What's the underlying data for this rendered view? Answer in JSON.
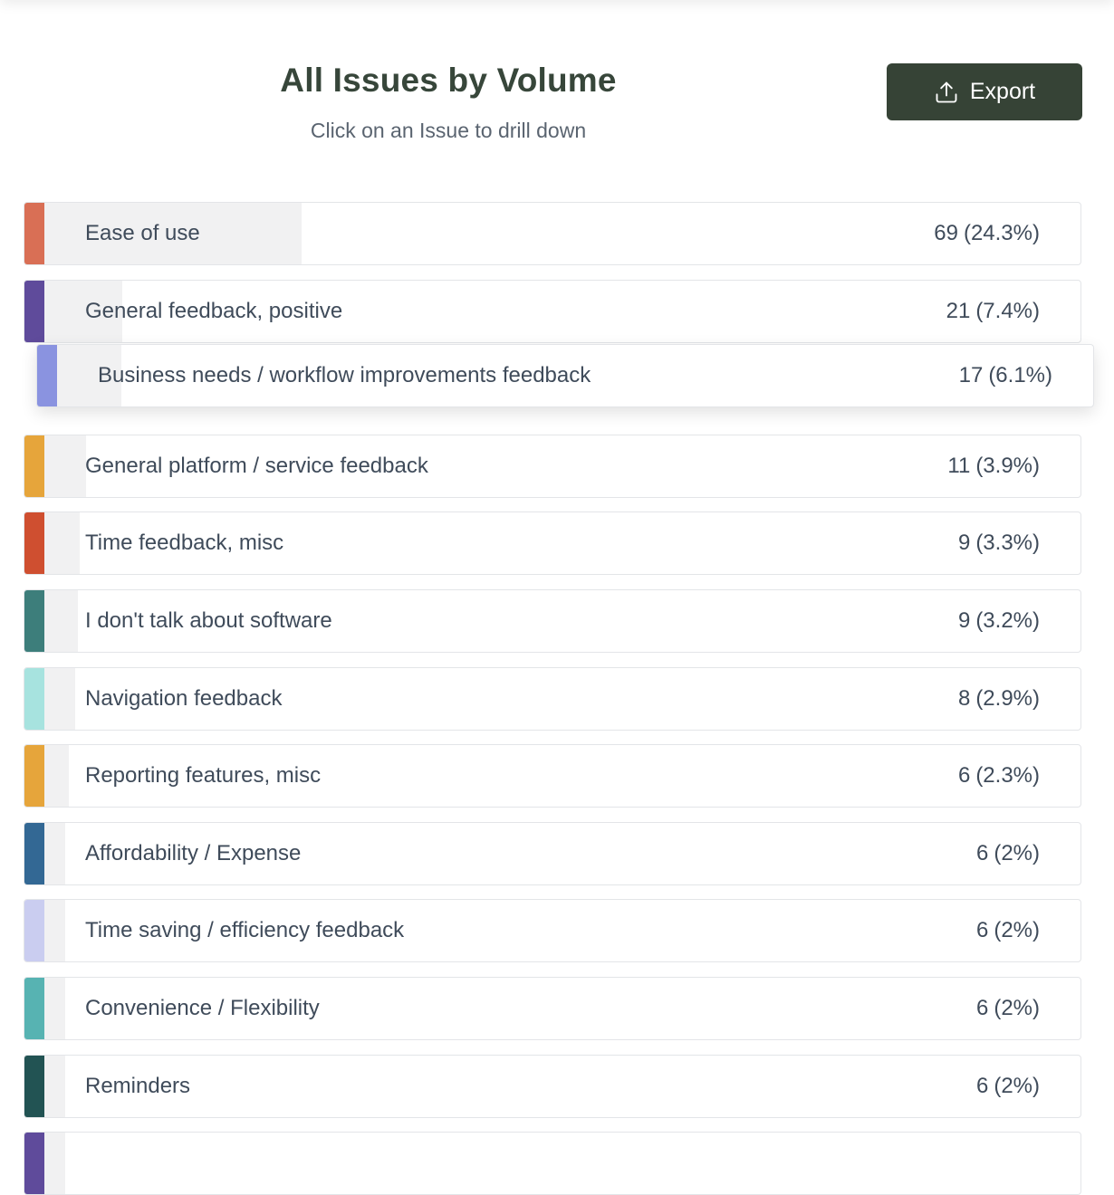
{
  "header": {
    "title": "All Issues by Volume",
    "subtitle": "Click on an Issue to drill down",
    "export_label": "Export",
    "export_icon": "upload-icon"
  },
  "issues": [
    {
      "label": "Ease of use",
      "count": "69",
      "pct": "(24.3%)",
      "share": 0.243,
      "color": "#d96f55"
    },
    {
      "label": "General feedback, positive",
      "count": "21",
      "pct": "(7.4%)",
      "share": 0.074,
      "color": "#5f4b9b"
    },
    {
      "label": "Business needs / workflow improvements feedback",
      "count": "17",
      "pct": "(6.1%)",
      "share": 0.061,
      "color": "#8a93e0"
    },
    {
      "label": "General platform / service feedback",
      "count": "11",
      "pct": "(3.9%)",
      "share": 0.039,
      "color": "#e6a53b"
    },
    {
      "label": "Time feedback, misc",
      "count": "9",
      "pct": "(3.3%)",
      "share": 0.033,
      "color": "#cf4f30"
    },
    {
      "label": "I don't talk about software",
      "count": "9",
      "pct": "(3.2%)",
      "share": 0.032,
      "color": "#3d7e7b"
    },
    {
      "label": "Navigation feedback",
      "count": "8",
      "pct": "(2.9%)",
      "share": 0.029,
      "color": "#a7e3df"
    },
    {
      "label": "Reporting features, misc",
      "count": "6",
      "pct": "(2.3%)",
      "share": 0.023,
      "color": "#e6a53b"
    },
    {
      "label": "Affordability / Expense",
      "count": "6",
      "pct": "(2%)",
      "share": 0.02,
      "color": "#336894"
    },
    {
      "label": "Time saving / efficiency feedback",
      "count": "6",
      "pct": "(2%)",
      "share": 0.02,
      "color": "#cacdf0"
    },
    {
      "label": "Convenience / Flexibility",
      "count": "6",
      "pct": "(2%)",
      "share": 0.02,
      "color": "#57b3b2"
    },
    {
      "label": "Reminders",
      "count": "6",
      "pct": "(2%)",
      "share": 0.02,
      "color": "#225353"
    },
    {
      "label": "",
      "count": "",
      "pct": "",
      "share": 0.02,
      "color": "#5f4b9b"
    }
  ],
  "hovered_index": 2
}
